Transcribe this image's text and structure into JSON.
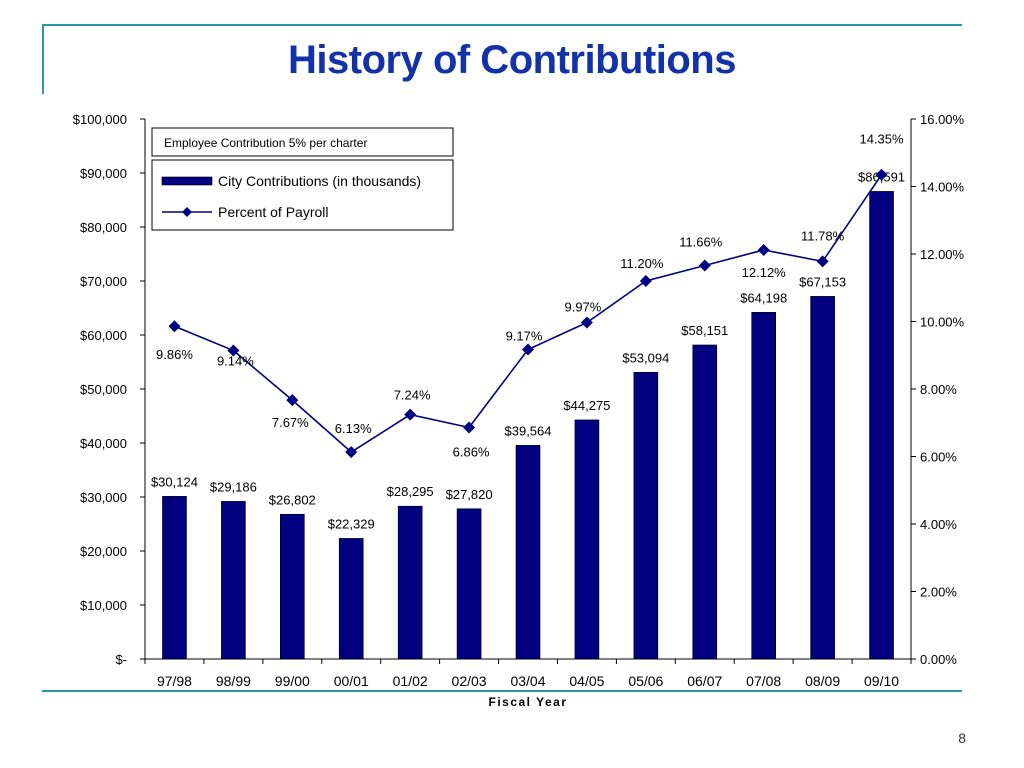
{
  "slide": {
    "title": "History of Contributions",
    "page_number": "8"
  },
  "colors": {
    "bar": "#000080",
    "line": "#000080",
    "title": "#1432a8",
    "rule": "#2a9aa0"
  },
  "chart_data": {
    "type": "bar",
    "xlabel": "Fiscal Year",
    "categories": [
      "97/98",
      "98/99",
      "99/00",
      "00/01",
      "01/02",
      "02/03",
      "03/04",
      "04/05",
      "05/06",
      "06/07",
      "07/08",
      "08/09",
      "09/10"
    ],
    "annotation": "Employee Contribution 5% per charter",
    "legend_position": "top-left",
    "grid": false,
    "y_left": {
      "ylim": [
        0,
        100000
      ],
      "ticks": [
        0,
        10000,
        20000,
        30000,
        40000,
        50000,
        60000,
        70000,
        80000,
        90000,
        100000
      ],
      "tick_labels": [
        "$-",
        "$10,000",
        "$20,000",
        "$30,000",
        "$40,000",
        "$50,000",
        "$60,000",
        "$70,000",
        "$80,000",
        "$90,000",
        "$100,000"
      ]
    },
    "y_right": {
      "ylim": [
        0,
        16
      ],
      "ticks": [
        0,
        2,
        4,
        6,
        8,
        10,
        12,
        14,
        16
      ],
      "tick_labels": [
        "0.00%",
        "2.00%",
        "4.00%",
        "6.00%",
        "8.00%",
        "10.00%",
        "12.00%",
        "14.00%",
        "16.00%"
      ]
    },
    "series": [
      {
        "name": "City Contributions (in thousands)",
        "type": "bar",
        "axis": "left",
        "values": [
          30124,
          29186,
          26802,
          22329,
          28295,
          27820,
          39564,
          44275,
          53094,
          58151,
          64198,
          67153,
          86591
        ],
        "labels": [
          "$30,124",
          "$29,186",
          "$26,802",
          "$22,329",
          "$28,295",
          "$27,820",
          "$39,564",
          "$44,275",
          "$53,094",
          "$58,151",
          "$64,198",
          "$67,153",
          "$86,591"
        ]
      },
      {
        "name": "Percent of Payroll",
        "type": "line",
        "axis": "right",
        "values": [
          9.86,
          9.14,
          7.67,
          6.13,
          7.24,
          6.86,
          9.17,
          9.97,
          11.2,
          11.66,
          12.12,
          11.78,
          14.35
        ],
        "labels": [
          "9.86%",
          "9.14%",
          "7.67%",
          "6.13%",
          "7.24%",
          "6.86%",
          "9.17%",
          "9.97%",
          "11.20%",
          "11.66%",
          "12.12%",
          "11.78%",
          "14.35%"
        ]
      }
    ]
  }
}
